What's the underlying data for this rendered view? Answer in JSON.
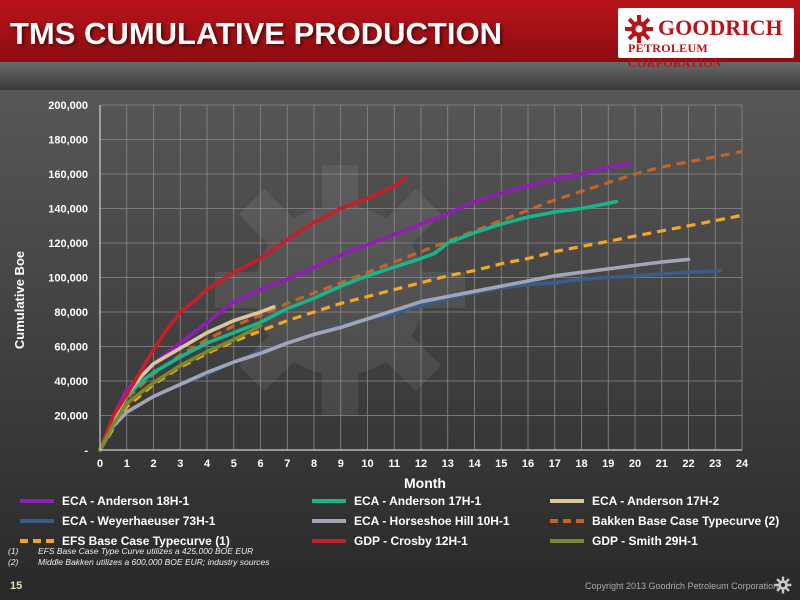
{
  "header": {
    "title": "TMS CUMULATIVE PRODUCTION",
    "logo_name": "GOODRICH",
    "logo_sub": "PETROLEUM CORPORATION"
  },
  "colors": {
    "brand_red": "#b8141a"
  },
  "chart_data": {
    "type": "line",
    "xlabel": "Month",
    "ylabel": "Cumulative Boe",
    "xlim": [
      0,
      24
    ],
    "ylim": [
      0,
      200000
    ],
    "x_ticks": [
      "0",
      "1",
      "2",
      "3",
      "4",
      "5",
      "6",
      "7",
      "8",
      "9",
      "10",
      "11",
      "12",
      "13",
      "14",
      "15",
      "16",
      "17",
      "18",
      "19",
      "20",
      "21",
      "22",
      "23",
      "24"
    ],
    "y_ticks": [
      "-",
      "20,000",
      "40,000",
      "60,000",
      "80,000",
      "100,000",
      "120,000",
      "140,000",
      "160,000",
      "180,000",
      "200,000"
    ],
    "grid": true,
    "legend_position": "bottom",
    "series": [
      {
        "name": "ECA - Anderson 18H-1",
        "color": "#8e1eb4",
        "dash": false,
        "points": [
          [
            0,
            0
          ],
          [
            0.5,
            20000
          ],
          [
            1,
            35000
          ],
          [
            1.5,
            43000
          ],
          [
            2,
            50000
          ],
          [
            3,
            62000
          ],
          [
            4,
            74000
          ],
          [
            5,
            86000
          ],
          [
            6,
            93000
          ],
          [
            7,
            99000
          ],
          [
            8,
            106000
          ],
          [
            9,
            113000
          ],
          [
            10,
            119000
          ],
          [
            11,
            125000
          ],
          [
            12,
            131000
          ],
          [
            13,
            137000
          ],
          [
            14,
            144000
          ],
          [
            15,
            149000
          ],
          [
            16,
            153000
          ],
          [
            17,
            157000
          ],
          [
            18,
            160000
          ],
          [
            19,
            164000
          ],
          [
            19.8,
            166000
          ]
        ]
      },
      {
        "name": "ECA - Anderson 17H-1",
        "color": "#19b48a",
        "dash": false,
        "points": [
          [
            0,
            0
          ],
          [
            0.5,
            18000
          ],
          [
            1,
            31000
          ],
          [
            1.5,
            39000
          ],
          [
            2,
            45000
          ],
          [
            3,
            54000
          ],
          [
            4,
            62000
          ],
          [
            5,
            68000
          ],
          [
            6,
            74000
          ],
          [
            7,
            82000
          ],
          [
            8,
            88000
          ],
          [
            9,
            95000
          ],
          [
            10,
            101000
          ],
          [
            11,
            106000
          ],
          [
            12,
            111000
          ],
          [
            12.5,
            114000
          ],
          [
            13,
            120000
          ],
          [
            14,
            126000
          ],
          [
            15,
            131000
          ],
          [
            16,
            135000
          ],
          [
            17,
            138000
          ],
          [
            18,
            140000
          ],
          [
            19,
            143000
          ],
          [
            19.3,
            144000
          ]
        ]
      },
      {
        "name": "ECA - Anderson 17H-2",
        "color": "#d8c89a",
        "dash": false,
        "points": [
          [
            0,
            0
          ],
          [
            0.5,
            18000
          ],
          [
            1,
            32000
          ],
          [
            1.5,
            42000
          ],
          [
            2,
            50000
          ],
          [
            3,
            59000
          ],
          [
            4,
            68000
          ],
          [
            5,
            75000
          ],
          [
            6,
            80000
          ],
          [
            6.5,
            83000
          ]
        ]
      },
      {
        "name": "ECA - Weyerhaeuser 73H-1",
        "color": "#3a5c88",
        "dash": false,
        "points": [
          [
            0,
            0
          ],
          [
            0.5,
            14000
          ],
          [
            1,
            22000
          ],
          [
            2,
            31000
          ],
          [
            3,
            38000
          ],
          [
            4,
            44000
          ],
          [
            5,
            51000
          ],
          [
            6,
            57000
          ],
          [
            7,
            62000
          ],
          [
            8,
            67000
          ],
          [
            9,
            72000
          ],
          [
            10,
            76000
          ],
          [
            11,
            79000
          ],
          [
            12,
            84000
          ],
          [
            13,
            88000
          ],
          [
            14,
            91000
          ],
          [
            15,
            94000
          ],
          [
            16,
            96000
          ],
          [
            17,
            97000
          ],
          [
            18,
            99000
          ],
          [
            19,
            100000
          ],
          [
            20,
            101000
          ],
          [
            21,
            102000
          ],
          [
            22,
            103000
          ],
          [
            23.2,
            104000
          ]
        ]
      },
      {
        "name": "ECA - Horseshoe Hill 10H-1",
        "color": "#a0a6b8",
        "dash": false,
        "points": [
          [
            0,
            0
          ],
          [
            0.5,
            14000
          ],
          [
            1,
            22000
          ],
          [
            2,
            31000
          ],
          [
            3,
            38000
          ],
          [
            4,
            45000
          ],
          [
            5,
            51000
          ],
          [
            6,
            56000
          ],
          [
            7,
            62000
          ],
          [
            8,
            67000
          ],
          [
            9,
            71000
          ],
          [
            10,
            76000
          ],
          [
            11,
            81000
          ],
          [
            12,
            86000
          ],
          [
            13,
            89000
          ],
          [
            14,
            92000
          ],
          [
            15,
            95000
          ],
          [
            16,
            98000
          ],
          [
            17,
            101000
          ],
          [
            18,
            103000
          ],
          [
            19,
            105000
          ],
          [
            20,
            107000
          ],
          [
            21,
            109000
          ],
          [
            22,
            110500
          ]
        ]
      },
      {
        "name": "Bakken Base Case Typecurve (2)",
        "color": "#c06428",
        "dash": true,
        "points": [
          [
            0,
            0
          ],
          [
            1,
            30000
          ],
          [
            2,
            44000
          ],
          [
            3,
            55000
          ],
          [
            4,
            64000
          ],
          [
            5,
            72000
          ],
          [
            6,
            78000
          ],
          [
            7,
            85000
          ],
          [
            8,
            91000
          ],
          [
            9,
            97000
          ],
          [
            10,
            103000
          ],
          [
            11,
            109000
          ],
          [
            12,
            115000
          ],
          [
            13,
            121000
          ],
          [
            14,
            127000
          ],
          [
            15,
            133000
          ],
          [
            16,
            139000
          ],
          [
            17,
            145000
          ],
          [
            18,
            150000
          ],
          [
            19,
            155000
          ],
          [
            20,
            160000
          ],
          [
            21,
            164000
          ],
          [
            22,
            167000
          ],
          [
            23,
            170000
          ],
          [
            24,
            173000
          ]
        ]
      },
      {
        "name": "EFS Base Case Typecurve (1)",
        "color": "#f5a623",
        "dash": true,
        "points": [
          [
            0,
            0
          ],
          [
            1,
            25000
          ],
          [
            2,
            38000
          ],
          [
            3,
            48000
          ],
          [
            4,
            56000
          ],
          [
            5,
            63000
          ],
          [
            6,
            69000
          ],
          [
            7,
            75000
          ],
          [
            8,
            80000
          ],
          [
            9,
            85000
          ],
          [
            10,
            89000
          ],
          [
            11,
            93000
          ],
          [
            12,
            97000
          ],
          [
            13,
            101000
          ],
          [
            14,
            104000
          ],
          [
            15,
            108000
          ],
          [
            16,
            111000
          ],
          [
            17,
            115000
          ],
          [
            18,
            118000
          ],
          [
            19,
            121000
          ],
          [
            20,
            124000
          ],
          [
            21,
            127000
          ],
          [
            22,
            130000
          ],
          [
            23,
            133000
          ],
          [
            24,
            136000
          ]
        ]
      },
      {
        "name": "GDP - Crosby 12H-1",
        "color": "#c81e28",
        "dash": false,
        "points": [
          [
            0,
            0
          ],
          [
            0.5,
            20000
          ],
          [
            1,
            32000
          ],
          [
            1.5,
            45000
          ],
          [
            2,
            58000
          ],
          [
            2.5,
            70000
          ],
          [
            3,
            80000
          ],
          [
            3.5,
            86000
          ],
          [
            4,
            93000
          ],
          [
            5,
            103000
          ],
          [
            6,
            111000
          ],
          [
            7,
            122000
          ],
          [
            8,
            132000
          ],
          [
            9,
            140000
          ],
          [
            10,
            146000
          ],
          [
            11,
            153000
          ],
          [
            11.4,
            158000
          ]
        ]
      },
      {
        "name": "GDP - Smith 29H-1",
        "color": "#7a8a2a",
        "dash": false,
        "points": [
          [
            0,
            0
          ],
          [
            0.5,
            15000
          ],
          [
            1,
            27000
          ],
          [
            2,
            39000
          ],
          [
            3,
            49000
          ],
          [
            4,
            57000
          ],
          [
            5,
            64000
          ],
          [
            6,
            72000
          ]
        ]
      }
    ]
  },
  "legend": [
    {
      "label": "ECA - Anderson 18H-1",
      "color": "#8e1eb4",
      "dash": false
    },
    {
      "label": "ECA - Anderson 17H-1",
      "color": "#19b48a",
      "dash": false
    },
    {
      "label": "ECA - Anderson 17H-2",
      "color": "#d8c89a",
      "dash": false
    },
    {
      "label": "ECA - Weyerhaeuser 73H-1",
      "color": "#3a5c88",
      "dash": false
    },
    {
      "label": "ECA - Horseshoe Hill 10H-1",
      "color": "#a0a6b8",
      "dash": false
    },
    {
      "label": "Bakken Base Case Typecurve (2)",
      "color": "#c06428",
      "dash": true
    },
    {
      "label": "EFS Base Case Typecurve (1)",
      "color": "#f5a623",
      "dash": true
    },
    {
      "label": "GDP - Crosby 12H-1",
      "color": "#c81e28",
      "dash": false
    },
    {
      "label": "GDP - Smith 29H-1",
      "color": "#7a8a2a",
      "dash": false
    }
  ],
  "footnotes": [
    {
      "num": "(1)",
      "text": "EFS Base Case Type Curve utilizes a 425,000 BOE EUR"
    },
    {
      "num": "(2)",
      "text": "Middle Bakken utilizes a 600,000 BOE EUR; industry sources"
    }
  ],
  "footer": {
    "page_number": "15",
    "copyright": "Copyright 2013 Goodrich Petroleum Corporation"
  }
}
